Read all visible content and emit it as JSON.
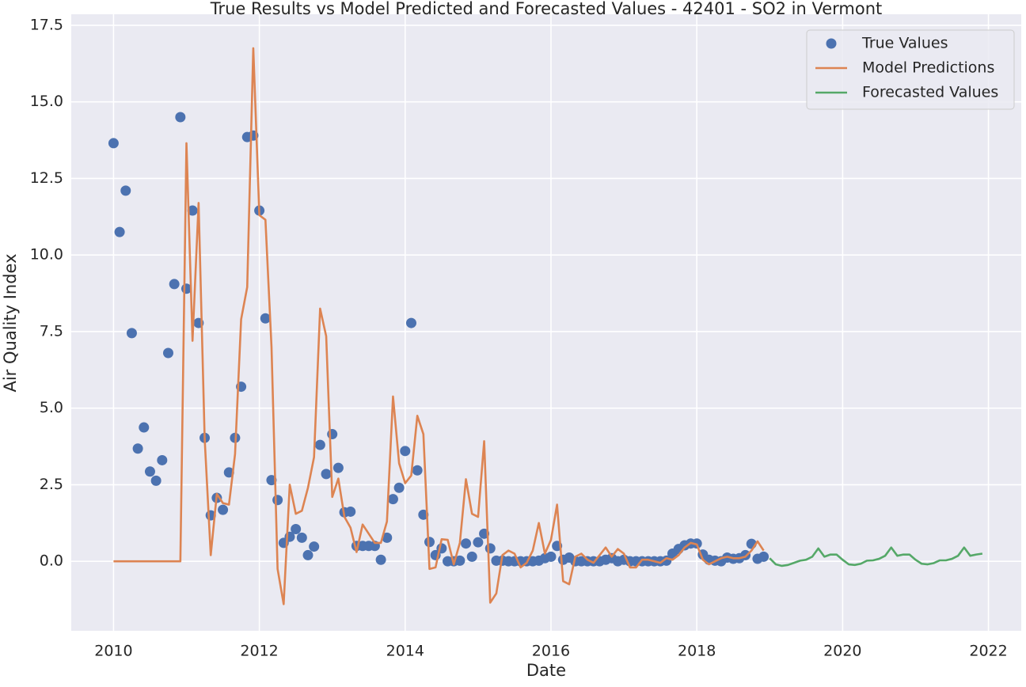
{
  "chart_data": {
    "type": "line",
    "title": "True Results vs Model Predicted and Forecasted Values - 42401 - SO2 in Vermont",
    "x_label": "Date",
    "y_label": "Air Quality Index",
    "xlim": [
      2009.42,
      2022.45
    ],
    "xticks": [
      2010,
      2012,
      2014,
      2016,
      2018,
      2020,
      2022
    ],
    "ylim": [
      -2.27,
      17.86
    ],
    "yticks": [
      {
        "value": 0,
        "label": "0.0"
      },
      2.5,
      {
        "value": 5,
        "label": "5.0"
      },
      7.5,
      {
        "value": 10,
        "label": "10.0"
      },
      12.5,
      {
        "value": 15,
        "label": "15.0"
      },
      17.5
    ],
    "grid": true,
    "legend": "upper right",
    "series": [
      {
        "name": "True Values",
        "color": "#4c72b0",
        "mode": "markers",
        "x": [
          "2010-01",
          "2010-02",
          "2010-03",
          "2010-04",
          "2010-05",
          "2010-06",
          "2010-07",
          "2010-08",
          "2010-09",
          "2010-10",
          "2010-11",
          "2010-12",
          "2011-01",
          "2011-02",
          "2011-03",
          "2011-04",
          "2011-05",
          "2011-06",
          "2011-07",
          "2011-08",
          "2011-09",
          "2011-10",
          "2011-11",
          "2011-12",
          "2012-01",
          "2012-02",
          "2012-03",
          "2012-04",
          "2012-05",
          "2012-06",
          "2012-07",
          "2012-08",
          "2012-09",
          "2012-10",
          "2012-11",
          "2012-12",
          "2013-01",
          "2013-02",
          "2013-03",
          "2013-04",
          "2013-05",
          "2013-06",
          "2013-07",
          "2013-08",
          "2013-09",
          "2013-10",
          "2013-11",
          "2013-12",
          "2014-01",
          "2014-02",
          "2014-03",
          "2014-04",
          "2014-05",
          "2014-06",
          "2014-07",
          "2014-08",
          "2014-09",
          "2014-10",
          "2014-11",
          "2014-12",
          "2015-01",
          "2015-02",
          "2015-03",
          "2015-04",
          "2015-05",
          "2015-06",
          "2015-07",
          "2015-08",
          "2015-09",
          "2015-10",
          "2015-11",
          "2015-12",
          "2016-01",
          "2016-02",
          "2016-03",
          "2016-04",
          "2016-05",
          "2016-06",
          "2016-07",
          "2016-08",
          "2016-09",
          "2016-10",
          "2016-11",
          "2016-12",
          "2017-01",
          "2017-02",
          "2017-03",
          "2017-04",
          "2017-05",
          "2017-06",
          "2017-07",
          "2017-08",
          "2017-09",
          "2017-10",
          "2017-11",
          "2017-12",
          "2018-01",
          "2018-02",
          "2018-03",
          "2018-04",
          "2018-05",
          "2018-06",
          "2018-07",
          "2018-08",
          "2018-09",
          "2018-10",
          "2018-11",
          "2018-12"
        ],
        "values": [
          13.65,
          10.75,
          12.1,
          7.45,
          3.68,
          4.37,
          2.93,
          2.63,
          3.3,
          6.8,
          9.05,
          14.5,
          8.9,
          11.45,
          7.78,
          4.03,
          1.5,
          2.07,
          1.68,
          2.9,
          4.03,
          5.7,
          13.85,
          13.9,
          11.45,
          7.93,
          2.65,
          2.0,
          0.6,
          0.8,
          1.05,
          0.77,
          0.2,
          0.48,
          3.8,
          2.85,
          4.15,
          3.05,
          1.6,
          1.62,
          0.5,
          0.5,
          0.5,
          0.5,
          0.05,
          0.77,
          2.03,
          2.4,
          3.6,
          7.78,
          2.97,
          1.52,
          0.63,
          0.2,
          0.42,
          0.0,
          0.0,
          0.02,
          0.58,
          0.15,
          0.62,
          0.9,
          0.42,
          0.02,
          0.02,
          0.0,
          0.0,
          0.0,
          0.0,
          0.0,
          0.02,
          0.1,
          0.15,
          0.5,
          0.05,
          0.12,
          0.0,
          0.0,
          0.0,
          0.0,
          0.0,
          0.05,
          0.1,
          0.0,
          0.05,
          0.0,
          0.0,
          0.0,
          0.0,
          0.0,
          0.0,
          0.02,
          0.25,
          0.4,
          0.52,
          0.58,
          0.58,
          0.22,
          0.05,
          0.02,
          0.0,
          0.12,
          0.08,
          0.1,
          0.2,
          0.57,
          0.08,
          0.15
        ]
      },
      {
        "name": "Model Predictions",
        "color": "#dd8452",
        "mode": "line",
        "x": [
          "2010-01",
          "2010-02",
          "2010-03",
          "2010-04",
          "2010-05",
          "2010-06",
          "2010-07",
          "2010-08",
          "2010-09",
          "2010-10",
          "2010-11",
          "2010-12",
          "2011-01",
          "2011-02",
          "2011-03",
          "2011-04",
          "2011-05",
          "2011-06",
          "2011-07",
          "2011-08",
          "2011-09",
          "2011-10",
          "2011-11",
          "2011-12",
          "2012-01",
          "2012-02",
          "2012-03",
          "2012-04",
          "2012-05",
          "2012-06",
          "2012-07",
          "2012-08",
          "2012-09",
          "2012-10",
          "2012-11",
          "2012-12",
          "2013-01",
          "2013-02",
          "2013-03",
          "2013-04",
          "2013-05",
          "2013-06",
          "2013-07",
          "2013-08",
          "2013-09",
          "2013-10",
          "2013-11",
          "2013-12",
          "2014-01",
          "2014-02",
          "2014-03",
          "2014-04",
          "2014-05",
          "2014-06",
          "2014-07",
          "2014-08",
          "2014-09",
          "2014-10",
          "2014-11",
          "2014-12",
          "2015-01",
          "2015-02",
          "2015-03",
          "2015-04",
          "2015-05",
          "2015-06",
          "2015-07",
          "2015-08",
          "2015-09",
          "2015-10",
          "2015-11",
          "2015-12",
          "2016-01",
          "2016-02",
          "2016-03",
          "2016-04",
          "2016-05",
          "2016-06",
          "2016-07",
          "2016-08",
          "2016-09",
          "2016-10",
          "2016-11",
          "2016-12",
          "2017-01",
          "2017-02",
          "2017-03",
          "2017-04",
          "2017-05",
          "2017-06",
          "2017-07",
          "2017-08",
          "2017-09",
          "2017-10",
          "2017-11",
          "2017-12",
          "2018-01",
          "2018-02",
          "2018-03",
          "2018-04",
          "2018-05",
          "2018-06",
          "2018-07",
          "2018-08",
          "2018-09",
          "2018-10",
          "2018-11",
          "2018-12"
        ],
        "values": [
          0,
          0,
          0,
          0,
          0,
          0,
          0,
          0,
          0,
          0,
          0,
          0,
          13.65,
          7.2,
          11.7,
          4.0,
          0.2,
          2.2,
          1.9,
          1.85,
          3.5,
          7.9,
          8.95,
          16.75,
          11.3,
          11.15,
          7.0,
          -0.25,
          -1.4,
          2.5,
          1.55,
          1.65,
          2.4,
          3.4,
          8.25,
          7.35,
          2.1,
          2.7,
          1.45,
          1.1,
          0.3,
          1.2,
          0.9,
          0.6,
          0.6,
          1.3,
          5.38,
          3.2,
          2.55,
          2.8,
          4.75,
          4.15,
          -0.25,
          -0.2,
          0.72,
          0.7,
          -0.1,
          0.6,
          2.68,
          1.55,
          1.45,
          3.92,
          -1.35,
          -1.05,
          0.2,
          0.35,
          0.25,
          -0.2,
          -0.05,
          0.35,
          1.25,
          0.25,
          0.7,
          1.85,
          -0.65,
          -0.75,
          0.15,
          0.25,
          0.05,
          -0.05,
          0.2,
          0.45,
          0.15,
          0.4,
          0.25,
          -0.2,
          -0.2,
          0.05,
          0.05,
          0.0,
          -0.05,
          0.1,
          0.05,
          0.2,
          0.45,
          0.6,
          0.55,
          0.05,
          -0.1,
          0.0,
          0.1,
          0.15,
          0.1,
          0.1,
          0.15,
          0.35,
          0.65,
          0.35
        ]
      },
      {
        "name": "Forecasted Values",
        "color": "#55a868",
        "mode": "line",
        "x": [
          "2019-01",
          "2019-02",
          "2019-03",
          "2019-04",
          "2019-05",
          "2019-06",
          "2019-07",
          "2019-08",
          "2019-09",
          "2019-10",
          "2019-11",
          "2019-12",
          "2020-01",
          "2020-02",
          "2020-03",
          "2020-04",
          "2020-05",
          "2020-06",
          "2020-07",
          "2020-08",
          "2020-09",
          "2020-10",
          "2020-11",
          "2020-12",
          "2021-01",
          "2021-02",
          "2021-03",
          "2021-04",
          "2021-05",
          "2021-06",
          "2021-07",
          "2021-08",
          "2021-09",
          "2021-10",
          "2021-11",
          "2021-12"
        ],
        "values": [
          0.1,
          -0.1,
          -0.15,
          -0.12,
          -0.05,
          0.02,
          0.05,
          0.15,
          0.42,
          0.15,
          0.22,
          0.22,
          0.05,
          -0.1,
          -0.12,
          -0.08,
          0.02,
          0.03,
          0.08,
          0.18,
          0.45,
          0.18,
          0.22,
          0.22,
          0.05,
          -0.08,
          -0.1,
          -0.06,
          0.03,
          0.03,
          0.08,
          0.18,
          0.45,
          0.18,
          0.22,
          0.25
        ]
      }
    ]
  }
}
